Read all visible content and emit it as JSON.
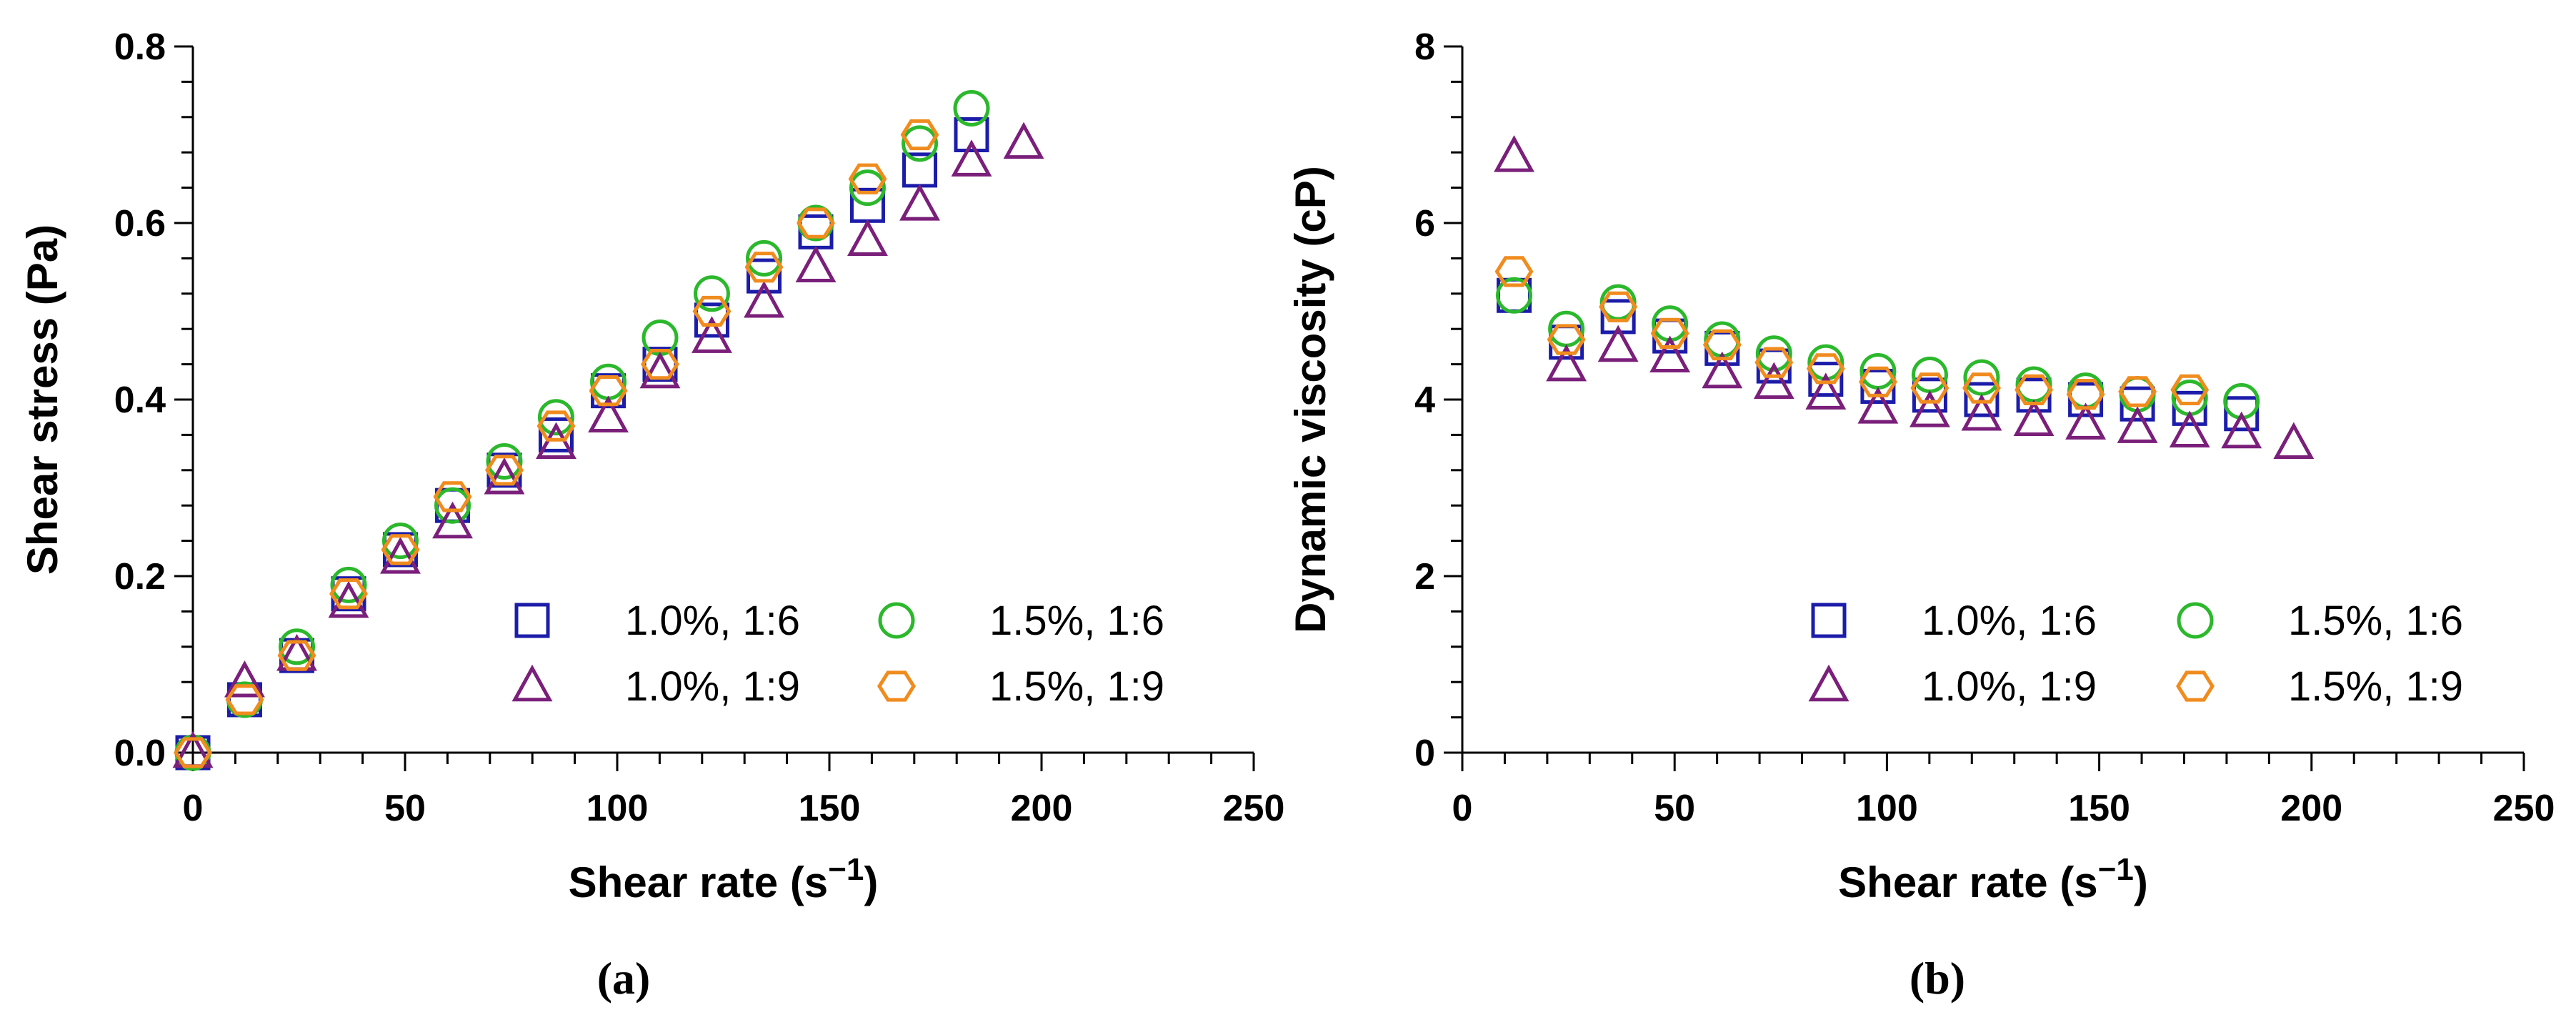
{
  "chart_data": [
    {
      "type": "scatter",
      "panel": "(a)",
      "xlabel": "Shear rate (s",
      "xlabel_sup": "−1",
      "xlabel_close": ")",
      "ylabel": "Shear stress (Pa)",
      "xlim": [
        0,
        250
      ],
      "ylim": [
        0,
        0.8
      ],
      "xticks": [
        0,
        50,
        100,
        150,
        200,
        250
      ],
      "xtick_labels": [
        "0",
        "50",
        "100",
        "150",
        "200",
        "250"
      ],
      "yticks": [
        0,
        0.2,
        0.4,
        0.6,
        0.8
      ],
      "ytick_labels": [
        "0.0",
        "0.2",
        "0.4",
        "0.6",
        "0.8"
      ],
      "legend_position": "bottom-right",
      "series": [
        {
          "name": "1.0%, 1:6",
          "marker": "square",
          "color": "#1c1caa",
          "x": [
            0,
            12.2,
            24.5,
            36.7,
            48.9,
            61.2,
            73.4,
            85.6,
            97.9,
            110.1,
            122.3,
            134.6,
            146.8,
            159.0,
            171.3,
            183.5
          ],
          "y": [
            0,
            0.06,
            0.11,
            0.18,
            0.23,
            0.28,
            0.32,
            0.36,
            0.41,
            0.44,
            0.49,
            0.54,
            0.59,
            0.62,
            0.66,
            0.7
          ]
        },
        {
          "name": "1.5%, 1:6",
          "marker": "circle",
          "color": "#2cb82c",
          "x": [
            0,
            12.2,
            24.5,
            36.7,
            48.9,
            61.2,
            73.4,
            85.6,
            97.9,
            110.1,
            122.3,
            134.6,
            146.8,
            159.0,
            171.3,
            183.5
          ],
          "y": [
            0,
            0.06,
            0.12,
            0.19,
            0.24,
            0.28,
            0.33,
            0.38,
            0.42,
            0.47,
            0.52,
            0.56,
            0.6,
            0.64,
            0.69,
            0.73
          ]
        },
        {
          "name": "1.0%, 1:9",
          "marker": "triangle",
          "color": "#7a1f7a",
          "x": [
            0,
            12.2,
            24.5,
            36.7,
            48.9,
            61.2,
            73.4,
            85.6,
            97.9,
            110.1,
            122.3,
            134.6,
            146.8,
            159.0,
            171.3,
            183.5,
            195.8
          ],
          "y": [
            0,
            0.08,
            0.11,
            0.17,
            0.22,
            0.26,
            0.31,
            0.35,
            0.38,
            0.43,
            0.47,
            0.51,
            0.55,
            0.58,
            0.62,
            0.67,
            0.69
          ]
        },
        {
          "name": "1.5%, 1:9",
          "marker": "hexagon",
          "color": "#f08c1e",
          "x": [
            0,
            12.2,
            24.5,
            36.7,
            48.9,
            61.2,
            73.4,
            85.6,
            97.9,
            110.1,
            122.3,
            134.6,
            146.8,
            159.0,
            171.3
          ],
          "y": [
            0,
            0.06,
            0.11,
            0.18,
            0.23,
            0.29,
            0.32,
            0.37,
            0.41,
            0.44,
            0.5,
            0.55,
            0.6,
            0.65,
            0.7
          ]
        }
      ]
    },
    {
      "type": "scatter",
      "panel": "(b)",
      "xlabel": "Shear rate (s",
      "xlabel_sup": "−1",
      "xlabel_close": ")",
      "ylabel": "Dynamic viscosity (cP)",
      "xlim": [
        0,
        250
      ],
      "ylim": [
        0,
        8
      ],
      "xticks": [
        0,
        50,
        100,
        150,
        200,
        250
      ],
      "xtick_labels": [
        "0",
        "50",
        "100",
        "150",
        "200",
        "250"
      ],
      "yticks": [
        0,
        2,
        4,
        6,
        8
      ],
      "ytick_labels": [
        "0",
        "2",
        "4",
        "6",
        "8"
      ],
      "legend_position": "bottom-right",
      "series": [
        {
          "name": "1.0%, 1:6",
          "marker": "square",
          "color": "#1c1caa",
          "x": [
            12.2,
            24.5,
            36.7,
            48.9,
            61.2,
            73.4,
            85.6,
            97.9,
            110.1,
            122.3,
            134.6,
            146.8,
            159.0,
            171.3,
            183.5
          ],
          "y": [
            5.18,
            4.65,
            4.94,
            4.72,
            4.58,
            4.38,
            4.23,
            4.15,
            4.05,
            4.0,
            4.05,
            4.0,
            3.95,
            3.9,
            3.84
          ]
        },
        {
          "name": "1.5%, 1:6",
          "marker": "circle",
          "color": "#2cb82c",
          "x": [
            12.2,
            24.5,
            36.7,
            48.9,
            61.2,
            73.4,
            85.6,
            97.9,
            110.1,
            122.3,
            134.6,
            146.8,
            159.0,
            171.3,
            183.5
          ],
          "y": [
            5.18,
            4.8,
            5.1,
            4.86,
            4.68,
            4.52,
            4.42,
            4.32,
            4.28,
            4.25,
            4.17,
            4.1,
            4.06,
            4.02,
            3.98
          ]
        },
        {
          "name": "1.0%, 1:9",
          "marker": "triangle",
          "color": "#7a1f7a",
          "x": [
            12.2,
            24.5,
            36.7,
            48.9,
            61.2,
            73.4,
            85.6,
            97.9,
            110.1,
            122.3,
            134.6,
            146.8,
            159.0,
            171.3,
            183.5,
            195.8
          ],
          "y": [
            6.75,
            4.38,
            4.6,
            4.48,
            4.3,
            4.18,
            4.06,
            3.9,
            3.86,
            3.82,
            3.76,
            3.72,
            3.68,
            3.63,
            3.62,
            3.5
          ]
        },
        {
          "name": "1.5%, 1:9",
          "marker": "hexagon",
          "color": "#f08c1e",
          "x": [
            12.2,
            24.5,
            36.7,
            48.9,
            61.2,
            73.4,
            85.6,
            97.9,
            110.1,
            122.3,
            134.6,
            146.8,
            159.0,
            171.3
          ],
          "y": [
            5.45,
            4.68,
            5.05,
            4.75,
            4.62,
            4.42,
            4.35,
            4.2,
            4.13,
            4.13,
            4.11,
            4.06,
            4.09,
            4.11
          ]
        }
      ]
    }
  ]
}
